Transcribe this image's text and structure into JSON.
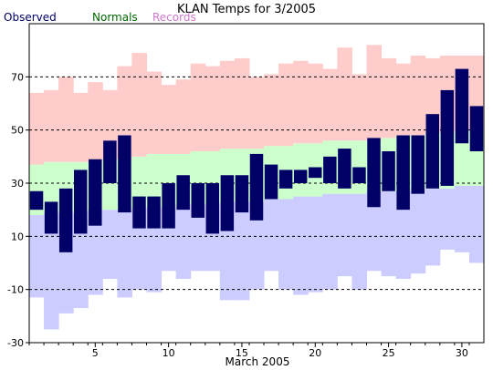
{
  "chart_data": {
    "type": "bar",
    "title": "KLAN Temps for 3/2005",
    "xlabel": "March 2005",
    "ylabel": "",
    "ylim": [
      -30,
      90
    ],
    "xlim": [
      0.5,
      31.5
    ],
    "yticks": [
      -30,
      -10,
      10,
      30,
      50,
      70
    ],
    "xticks": [
      5,
      10,
      15,
      20,
      25,
      30
    ],
    "grid": "dashed horizontal lines at y ticks",
    "legend_placement": "top-left",
    "days": [
      1,
      2,
      3,
      4,
      5,
      6,
      7,
      8,
      9,
      10,
      11,
      12,
      13,
      14,
      15,
      16,
      17,
      18,
      19,
      20,
      21,
      22,
      23,
      24,
      25,
      26,
      27,
      28,
      29,
      30,
      31
    ],
    "series": [
      {
        "name": "Observed",
        "color": "#000066",
        "high": [
          27,
          23,
          28,
          35,
          39,
          46,
          48,
          25,
          25,
          30,
          33,
          30,
          30,
          33,
          33,
          41,
          37,
          35,
          35,
          36,
          40,
          43,
          36,
          47,
          42,
          48,
          48,
          56,
          65,
          73,
          59
        ],
        "low": [
          20,
          11,
          4,
          11,
          14,
          30,
          19,
          13,
          13,
          13,
          20,
          17,
          11,
          12,
          19,
          16,
          24,
          28,
          30,
          32,
          30,
          28,
          30,
          21,
          27,
          20,
          26,
          28,
          29,
          45,
          42
        ]
      },
      {
        "name": "Normals",
        "color": "#ccffcc",
        "text_color": "#006600",
        "high": [
          37,
          38,
          38,
          38,
          38,
          39,
          39,
          40,
          41,
          41,
          41,
          42,
          42,
          43,
          43,
          43,
          44,
          44,
          45,
          45,
          46,
          46,
          46,
          46,
          47,
          48,
          48,
          49,
          49,
          50,
          50
        ],
        "low": [
          18,
          19,
          19,
          19,
          20,
          20,
          20,
          21,
          21,
          21,
          22,
          22,
          22,
          23,
          23,
          23,
          24,
          24,
          25,
          25,
          26,
          26,
          26,
          27,
          27,
          27,
          28,
          28,
          28,
          29,
          29
        ]
      },
      {
        "name": "Records",
        "color": "#ffcccc",
        "text_color": "#cc77cc",
        "low_color": "#ccccff",
        "high": [
          64,
          65,
          70,
          64,
          68,
          65,
          74,
          79,
          72,
          67,
          69,
          75,
          74,
          76,
          77,
          70,
          71,
          75,
          76,
          75,
          73,
          81,
          71,
          82,
          77,
          75,
          78,
          77,
          78,
          78,
          78
        ],
        "low": [
          -13,
          -25,
          -19,
          -17,
          -12,
          -6,
          -13,
          -10,
          -11,
          -3,
          -6,
          -3,
          -3,
          -14,
          -14,
          -10,
          -3,
          -10,
          -12,
          -11,
          -10,
          -5,
          -10,
          -3,
          -5,
          -6,
          -4,
          -1,
          5,
          4,
          0
        ]
      }
    ]
  }
}
